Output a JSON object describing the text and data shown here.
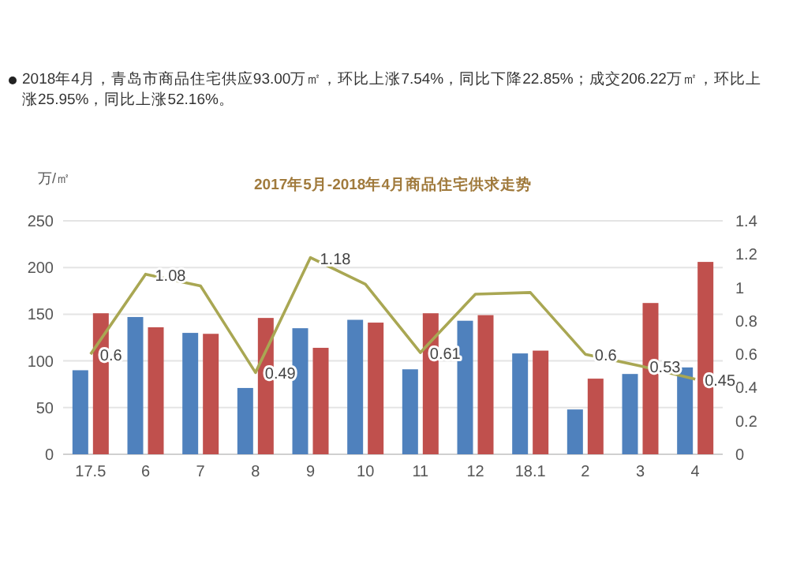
{
  "chart_data": {
    "type": "bar",
    "title": "2017年5月-2018年4月商品住宅供求走势",
    "ylabel": "万/㎡",
    "annotations": [
      "2018年4月，青岛市商品住宅供应93.00万㎡，环比上涨7.54%，同比下降22.85%；成交206.22万㎡，环比上涨25.95%，同比上涨52.16%。"
    ],
    "categories": [
      "17.5",
      "6",
      "7",
      "8",
      "9",
      "10",
      "11",
      "12",
      "18.1",
      "2",
      "3",
      "4"
    ],
    "series": [
      {
        "color": "#4f81bd",
        "values": [
          90,
          147,
          130,
          71,
          135,
          144,
          91,
          143,
          108,
          48,
          86,
          93
        ]
      },
      {
        "color": "#c0504d",
        "values": [
          151,
          136,
          129,
          146,
          114,
          141,
          151,
          149,
          111,
          81,
          162,
          206
        ]
      },
      {
        "type": "line",
        "axis": "y2",
        "color": "#a9a753",
        "values": [
          0.6,
          1.08,
          1.01,
          0.49,
          1.18,
          1.02,
          0.61,
          0.96,
          0.97,
          0.6,
          0.53,
          0.45
        ],
        "value_labels": [
          "0.6",
          "1.08",
          null,
          "0.49",
          "1.18",
          null,
          "0.61",
          null,
          null,
          "0.6",
          "0.53",
          "0.45"
        ]
      }
    ],
    "ylim": [
      0,
      250
    ],
    "yticks": [
      0,
      50,
      100,
      150,
      200,
      250
    ],
    "y2lim": [
      0,
      1.4
    ],
    "y2ticks": [
      0,
      0.2,
      0.4,
      0.6,
      0.8,
      1,
      1.2,
      1.4
    ],
    "grid": "y"
  }
}
